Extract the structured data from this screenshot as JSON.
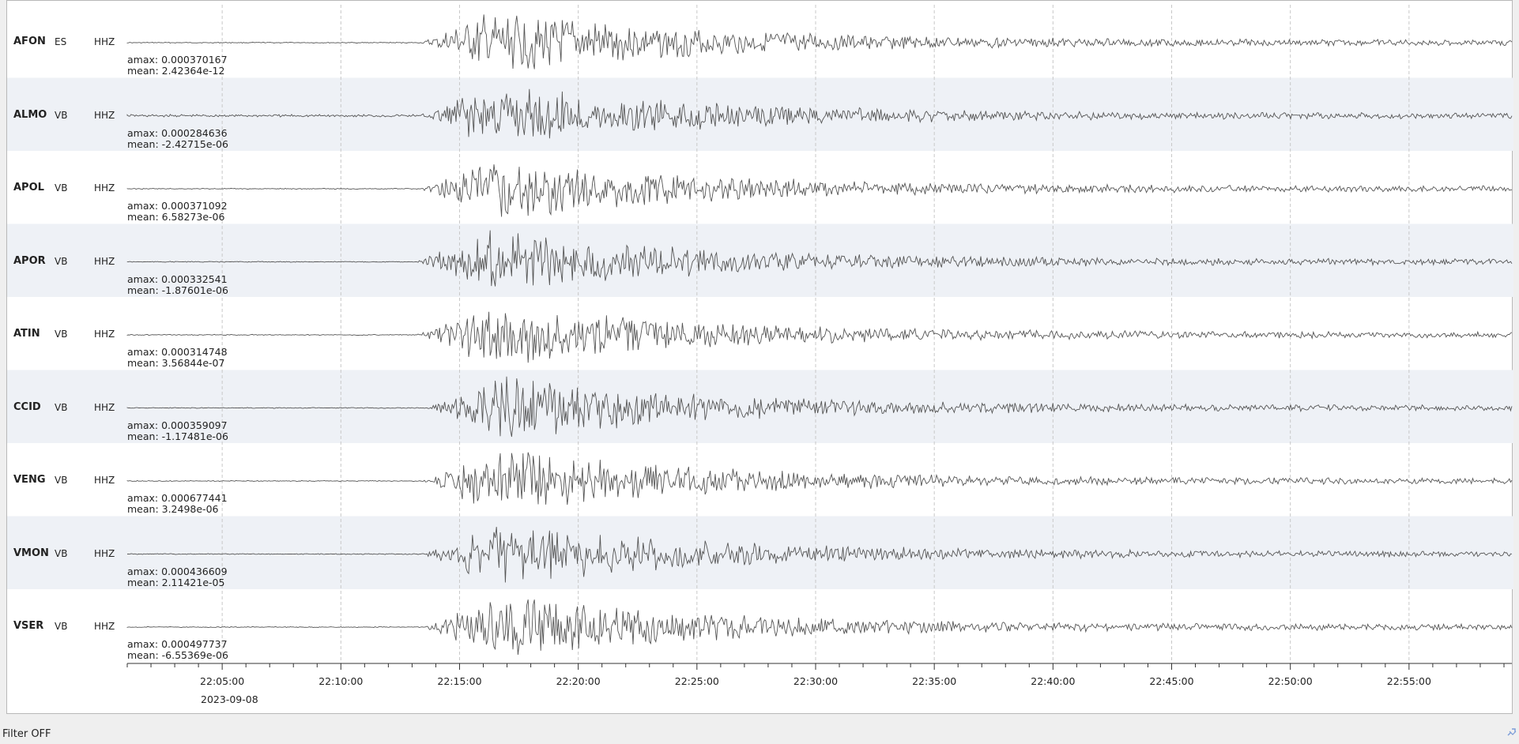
{
  "traces": [
    {
      "station": "AFON",
      "network": "ES",
      "channel": "HHZ",
      "amax": "amax: 0.000370167",
      "mean": "mean: 2.42364e-12",
      "onset_time": "22:13:20",
      "amax_value": 0.000370167
    },
    {
      "station": "ALMO",
      "network": "VB",
      "channel": "HHZ",
      "amax": "amax: 0.000284636",
      "mean": "mean: -2.42715e-06",
      "onset_time": "22:13:15",
      "amax_value": 0.000284636
    },
    {
      "station": "APOL",
      "network": "VB",
      "channel": "HHZ",
      "amax": "amax: 0.000371092",
      "mean": "mean: 6.58273e-06",
      "onset_time": "22:13:20",
      "amax_value": 0.000371092
    },
    {
      "station": "APOR",
      "network": "VB",
      "channel": "HHZ",
      "amax": "amax: 0.000332541",
      "mean": "mean: -1.87601e-06",
      "onset_time": "22:13:10",
      "amax_value": 0.000332541
    },
    {
      "station": "ATIN",
      "network": "VB",
      "channel": "HHZ",
      "amax": "amax: 0.000314748",
      "mean": "mean: 3.56844e-07",
      "onset_time": "22:13:10",
      "amax_value": 0.000314748
    },
    {
      "station": "CCID",
      "network": "VB",
      "channel": "HHZ",
      "amax": "amax: 0.000359097",
      "mean": "mean: -1.17481e-06",
      "onset_time": "22:13:35",
      "amax_value": 0.000359097
    },
    {
      "station": "VENG",
      "network": "VB",
      "channel": "HHZ",
      "amax": "amax: 0.000677441",
      "mean": "mean: 3.2498e-06",
      "onset_time": "22:13:25",
      "amax_value": 0.000677441
    },
    {
      "station": "VMON",
      "network": "VB",
      "channel": "HHZ",
      "amax": "amax: 0.000436609",
      "mean": "mean: 2.11421e-05",
      "onset_time": "22:13:25",
      "amax_value": 0.000436609
    },
    {
      "station": "VSER",
      "network": "VB",
      "channel": "HHZ",
      "amax": "amax: 0.000497737",
      "mean": "mean: -6.55369e-06",
      "onset_time": "22:13:30",
      "amax_value": 0.000497737
    }
  ],
  "time_axis": {
    "start": "22:01:00",
    "end": "22:59:20",
    "major_ticks": [
      "22:05:00",
      "22:10:00",
      "22:15:00",
      "22:20:00",
      "22:25:00",
      "22:30:00",
      "22:35:00",
      "22:40:00",
      "22:45:00",
      "22:50:00",
      "22:55:00"
    ],
    "minor_tick_interval_s": 60,
    "date": "2023-09-08"
  },
  "status": {
    "filter": "Filter OFF"
  },
  "colors": {
    "alt_row": "#eef1f6",
    "trace": "#555555",
    "grid": "#c8c8c8"
  },
  "icons": {
    "corner": "zoom-cursor-icon"
  }
}
